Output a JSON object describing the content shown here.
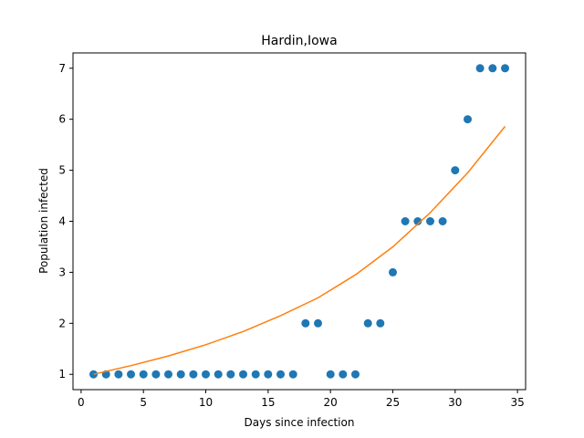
{
  "chart_data": {
    "type": "scatter",
    "title": "Hardin,Iowa",
    "xlabel": "Days since infection",
    "ylabel": "Population infected",
    "xlim": [
      -0.65,
      35.65
    ],
    "ylim": [
      0.7,
      7.3
    ],
    "xticks": [
      0,
      5,
      10,
      15,
      20,
      25,
      30,
      35
    ],
    "yticks": [
      1,
      2,
      3,
      4,
      5,
      6,
      7
    ],
    "grid": false,
    "series": [
      {
        "kind": "scatter",
        "color": "#1f77b4",
        "x": [
          1,
          2,
          3,
          4,
          5,
          6,
          7,
          8,
          9,
          10,
          11,
          12,
          13,
          14,
          15,
          16,
          17,
          18,
          19,
          20,
          21,
          22,
          23,
          24,
          25,
          26,
          27,
          28,
          29,
          30,
          31,
          32,
          33,
          34
        ],
        "y": [
          1,
          1,
          1,
          1,
          1,
          1,
          1,
          1,
          1,
          1,
          1,
          1,
          1,
          1,
          1,
          1,
          1,
          2,
          2,
          1,
          1,
          1,
          2,
          2,
          3,
          4,
          4,
          4,
          4,
          5,
          6,
          7,
          7,
          7
        ]
      },
      {
        "kind": "line",
        "color": "#ff7f0e",
        "x": [
          1,
          4,
          7,
          10,
          13,
          16,
          19,
          22,
          25,
          28,
          31,
          34
        ],
        "y": [
          1.0,
          1.17,
          1.36,
          1.58,
          1.84,
          2.15,
          2.5,
          2.95,
          3.5,
          4.17,
          4.95,
          5.86
        ]
      }
    ]
  }
}
